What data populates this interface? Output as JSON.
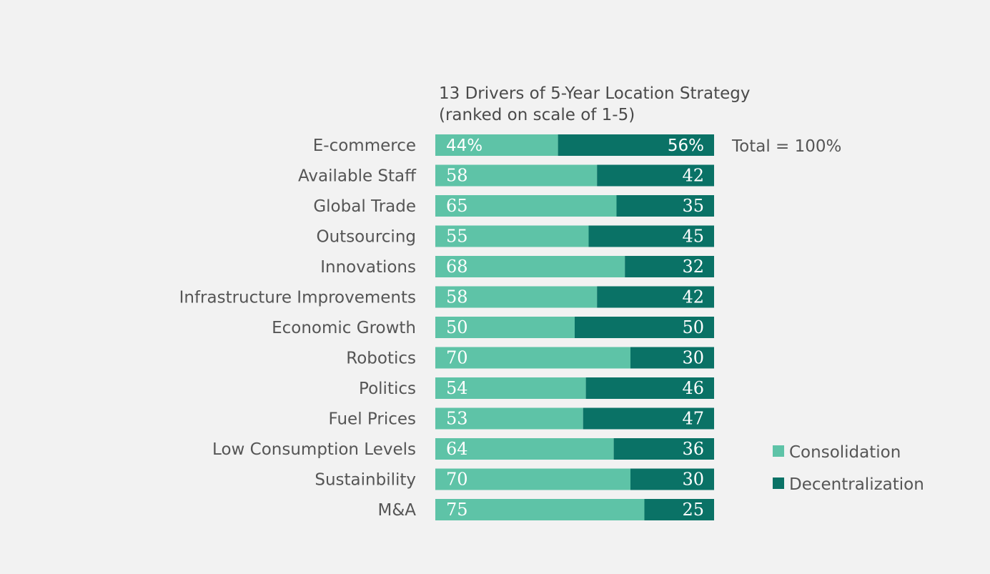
{
  "colors": {
    "consolidation": "#5ec3a7",
    "decentralization": "#0a7266",
    "background": "#f2f2f2"
  },
  "chart_data": {
    "type": "bar",
    "orientation": "horizontal",
    "stacked": true,
    "title_lines": [
      "13 Drivers of 5-Year Location Strategy",
      "(ranked on scale of 1-5)"
    ],
    "categories": [
      "E-commerce",
      "Available Staff",
      "Global Trade ",
      "Outsourcing",
      "Innovations",
      "Infrastructure Improvements",
      "Economic Growth",
      "Robotics",
      "Politics",
      "Fuel Prices",
      "Low Consumption Levels",
      "Sustainbility",
      "M&A"
    ],
    "series": [
      {
        "name": "Consolidation",
        "values": [
          44,
          58,
          65,
          55,
          68,
          58,
          50,
          70,
          54,
          53,
          64,
          70,
          75
        ]
      },
      {
        "name": "Decentralization",
        "values": [
          56,
          42,
          35,
          45,
          32,
          42,
          50,
          30,
          46,
          47,
          36,
          30,
          25
        ]
      }
    ],
    "value_labels": {
      "Consolidation": [
        "44%",
        "58",
        "65",
        "55",
        "68",
        "58",
        "50",
        "70",
        "54",
        "53",
        "64",
        "70",
        "75"
      ],
      "Decentralization": [
        "56%",
        "42",
        "35",
        "45",
        "32",
        "42",
        "50",
        "30",
        "46",
        "47",
        "36",
        "30",
        "25"
      ]
    },
    "xlim": [
      0,
      100
    ],
    "grid": false,
    "annotation": "Total = 100%",
    "legend": {
      "position": "bottom-right",
      "entries": [
        "Consolidation",
        "Decentralization"
      ]
    }
  }
}
